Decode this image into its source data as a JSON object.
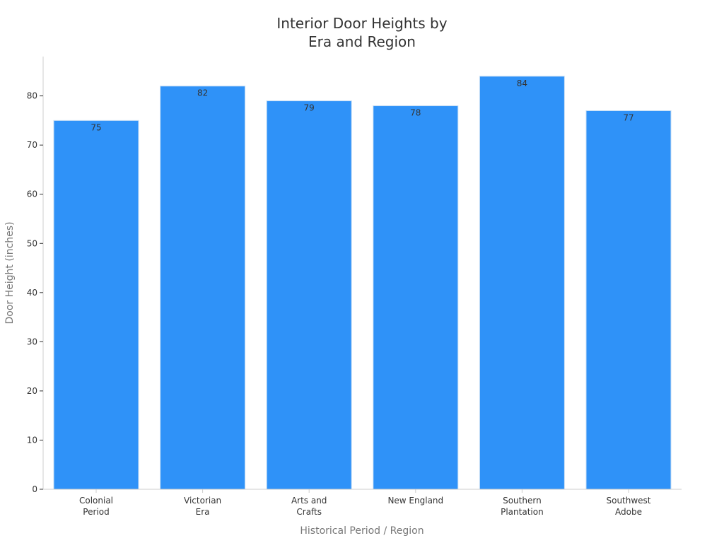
{
  "chart_data": {
    "type": "bar",
    "title_lines": [
      "Interior Door Heights by",
      "Era and Region"
    ],
    "categories": [
      [
        "Colonial",
        "Period"
      ],
      [
        "Victorian",
        "Era"
      ],
      [
        "Arts and",
        "Crafts"
      ],
      [
        "New England"
      ],
      [
        "Southern",
        "Plantation"
      ],
      [
        "Southwest",
        "Adobe"
      ]
    ],
    "values": [
      75,
      82,
      79,
      78,
      84,
      77
    ],
    "xlabel": "Historical Period / Region",
    "ylabel": "Door Height (inches)",
    "ylim": [
      0,
      88
    ],
    "yticks": [
      0,
      10,
      20,
      30,
      40,
      50,
      60,
      70,
      80
    ],
    "grid": false,
    "bar_color": "#2f92f8",
    "bar_edge_color": "#c9dff5"
  }
}
